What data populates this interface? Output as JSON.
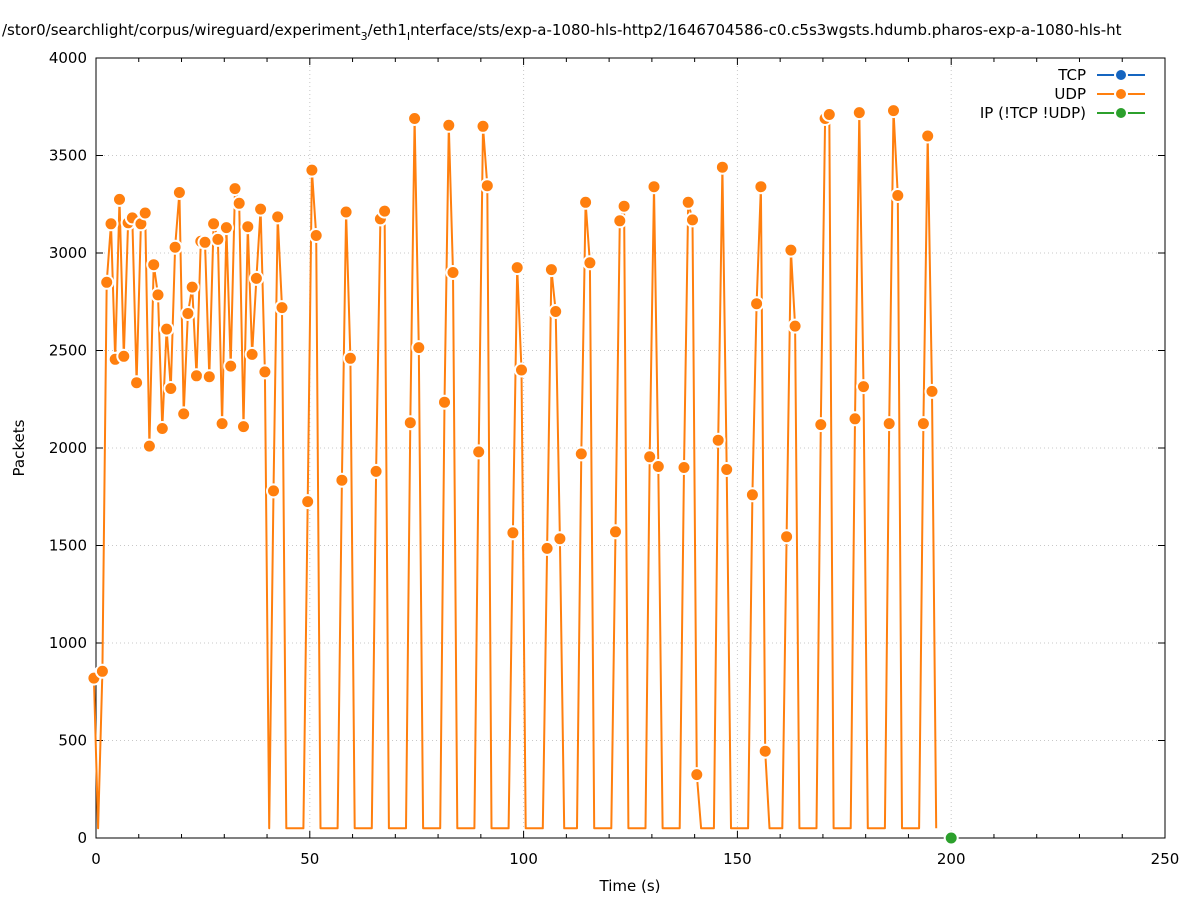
{
  "chart_data": {
    "type": "line",
    "title": "/stor0/searchlight/corpus/wireguard/experiment",
    "title_sub": "3",
    "title_mid": "/eth1",
    "title_sub2": "I",
    "title_rest": "nterface/sts/exp-a-1080-hls-http2/1646704586-c0.c5s3wgsts.hdumb.pharos-exp-a-1080-hls-ht",
    "xlabel": "Time (s)",
    "ylabel": "Packets",
    "xlim": [
      0,
      250
    ],
    "ylim": [
      0,
      4000
    ],
    "x_ticks": [
      0,
      50,
      100,
      150,
      200,
      250
    ],
    "y_ticks": [
      0,
      500,
      1000,
      1500,
      2000,
      2500,
      3000,
      3500,
      4000
    ],
    "grid": true,
    "legend_position": "top-right",
    "series": [
      {
        "name": "TCP",
        "color": "#1565c0",
        "points": []
      },
      {
        "name": "UDP",
        "color": "#ff7f0e",
        "points": [
          [
            -0.5,
            820
          ],
          [
            0.5,
            50
          ],
          [
            1.5,
            855
          ],
          [
            2.5,
            2850
          ],
          [
            3.5,
            3150
          ],
          [
            4.5,
            2455
          ],
          [
            5.5,
            3275
          ],
          [
            6.5,
            2470
          ],
          [
            7.5,
            3155
          ],
          [
            8.5,
            3180
          ],
          [
            9.5,
            2335
          ],
          [
            10.5,
            3150
          ],
          [
            11.5,
            3205
          ],
          [
            12.5,
            2010
          ],
          [
            13.5,
            2940
          ],
          [
            14.5,
            2785
          ],
          [
            15.5,
            2100
          ],
          [
            16.5,
            2610
          ],
          [
            17.5,
            2305
          ],
          [
            18.5,
            3030
          ],
          [
            19.5,
            3310
          ],
          [
            20.5,
            2175
          ],
          [
            21.5,
            2690
          ],
          [
            22.5,
            2825
          ],
          [
            23.5,
            2370
          ],
          [
            24.5,
            3060
          ],
          [
            25.5,
            3055
          ],
          [
            26.5,
            2365
          ],
          [
            27.5,
            3150
          ],
          [
            28.5,
            3070
          ],
          [
            29.5,
            2125
          ],
          [
            30.5,
            3130
          ],
          [
            31.5,
            2420
          ],
          [
            32.5,
            3330
          ],
          [
            33.5,
            3255
          ],
          [
            34.5,
            2110
          ],
          [
            35.5,
            3135
          ],
          [
            36.5,
            2480
          ],
          [
            37.5,
            2870
          ],
          [
            38.5,
            3225
          ],
          [
            39.5,
            2390
          ],
          [
            40.5,
            50
          ],
          [
            41.5,
            1780
          ],
          [
            42.5,
            3185
          ],
          [
            43.5,
            2720
          ],
          [
            44.5,
            50
          ],
          [
            48.5,
            50
          ],
          [
            49.5,
            1725
          ],
          [
            50.5,
            3425
          ],
          [
            51.5,
            3090
          ],
          [
            52.5,
            50
          ],
          [
            56.5,
            50
          ],
          [
            57.5,
            1835
          ],
          [
            58.5,
            3210
          ],
          [
            59.5,
            2460
          ],
          [
            60.5,
            50
          ],
          [
            64.5,
            50
          ],
          [
            65.5,
            1880
          ],
          [
            66.5,
            3175
          ],
          [
            67.5,
            3215
          ],
          [
            68.5,
            50
          ],
          [
            72.5,
            50
          ],
          [
            73.5,
            2130
          ],
          [
            74.5,
            3690
          ],
          [
            75.5,
            2515
          ],
          [
            76.5,
            50
          ],
          [
            80.5,
            50
          ],
          [
            81.5,
            2235
          ],
          [
            82.5,
            3655
          ],
          [
            83.5,
            2900
          ],
          [
            84.5,
            50
          ],
          [
            88.5,
            50
          ],
          [
            89.5,
            1980
          ],
          [
            90.5,
            3650
          ],
          [
            91.5,
            3345
          ],
          [
            92.5,
            50
          ],
          [
            96.5,
            50
          ],
          [
            97.5,
            1565
          ],
          [
            98.5,
            2925
          ],
          [
            99.5,
            2400
          ],
          [
            100.5,
            50
          ],
          [
            104.5,
            50
          ],
          [
            105.5,
            1485
          ],
          [
            106.5,
            2915
          ],
          [
            107.5,
            2700
          ],
          [
            108.5,
            1535
          ],
          [
            109.5,
            50
          ],
          [
            112.5,
            50
          ],
          [
            113.5,
            1970
          ],
          [
            114.5,
            3260
          ],
          [
            115.5,
            2950
          ],
          [
            116.5,
            50
          ],
          [
            120.5,
            50
          ],
          [
            121.5,
            1570
          ],
          [
            122.5,
            3165
          ],
          [
            123.5,
            3240
          ],
          [
            124.5,
            50
          ],
          [
            128.5,
            50
          ],
          [
            129.5,
            1955
          ],
          [
            130.5,
            3340
          ],
          [
            131.5,
            1905
          ],
          [
            132.5,
            50
          ],
          [
            136.5,
            50
          ],
          [
            137.5,
            1900
          ],
          [
            138.5,
            3260
          ],
          [
            139.5,
            3170
          ],
          [
            140.5,
            325
          ],
          [
            141.5,
            50
          ],
          [
            144.5,
            50
          ],
          [
            145.5,
            2040
          ],
          [
            146.5,
            3440
          ],
          [
            147.5,
            1890
          ],
          [
            148.5,
            50
          ],
          [
            152.5,
            50
          ],
          [
            153.5,
            1760
          ],
          [
            154.5,
            2740
          ],
          [
            155.5,
            3340
          ],
          [
            156.5,
            445
          ],
          [
            157.5,
            50
          ],
          [
            160.5,
            50
          ],
          [
            161.5,
            1545
          ],
          [
            162.5,
            3015
          ],
          [
            163.5,
            2625
          ],
          [
            164.5,
            50
          ],
          [
            168.5,
            50
          ],
          [
            169.5,
            2120
          ],
          [
            170.5,
            3690
          ],
          [
            171.5,
            3710
          ],
          [
            172.5,
            50
          ],
          [
            176.5,
            50
          ],
          [
            177.5,
            2150
          ],
          [
            178.5,
            3720
          ],
          [
            179.5,
            2315
          ],
          [
            180.5,
            50
          ],
          [
            184.5,
            50
          ],
          [
            185.5,
            2125
          ],
          [
            186.5,
            3730
          ],
          [
            187.5,
            3295
          ],
          [
            188.5,
            50
          ],
          [
            192.5,
            50
          ],
          [
            193.5,
            2125
          ],
          [
            194.5,
            3600
          ],
          [
            195.5,
            2290
          ],
          [
            196.5,
            50
          ]
        ]
      },
      {
        "name": "IP (!TCP  !UDP)",
        "color": "#2ca02c",
        "points": [
          [
            200,
            0
          ]
        ]
      }
    ]
  }
}
